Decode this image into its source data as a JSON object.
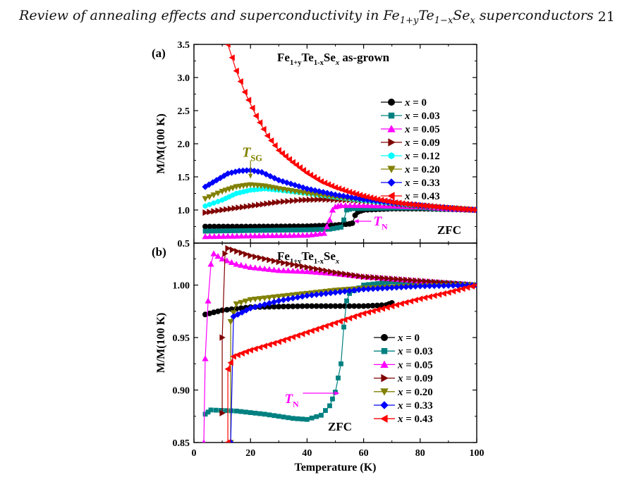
{
  "header": {
    "title_parts": [
      "Review of annealing effects and superconductivity in Fe",
      "1+y",
      "Te",
      "1−x",
      "Se",
      "x",
      " superconductors"
    ],
    "page_number": "21"
  },
  "chart_data": [
    {
      "panel_label": "(a)",
      "type": "scatter",
      "title_parts": [
        "Fe",
        "1+y",
        "Te",
        "1-x",
        "Se",
        "x",
        " as-grown"
      ],
      "ylabel": "M/M(100 K)",
      "xlabel": "",
      "xlim": [
        0,
        100
      ],
      "ylim": [
        0.5,
        3.5
      ],
      "yticks": [
        "0.5",
        "1.0",
        "1.5",
        "2.0",
        "2.5",
        "3.0",
        "3.5"
      ],
      "xticks": [
        "0",
        "20",
        "40",
        "60",
        "80",
        "100"
      ],
      "annotations": [
        {
          "parts": [
            "T",
            "SG"
          ],
          "color": "#808000",
          "points_to": [
            20,
            1.45
          ]
        },
        {
          "parts": [
            "T",
            "N"
          ],
          "color": "#ff00ff",
          "points_to": [
            56,
            0.83
          ]
        },
        {
          "parts": [
            "ZFC"
          ],
          "color": "#000000"
        }
      ],
      "legend": "right",
      "series": [
        {
          "label": "x = 0",
          "color": "#000000",
          "marker": "circle",
          "points": [
            [
              4,
              0.75
            ],
            [
              20,
              0.75
            ],
            [
              40,
              0.755
            ],
            [
              50,
              0.77
            ],
            [
              55,
              0.79
            ],
            [
              56,
              0.8
            ],
            [
              57,
              0.92
            ],
            [
              58,
              0.97
            ],
            [
              60,
              1.0
            ],
            [
              70,
              1.02
            ],
            [
              80,
              1.02
            ],
            [
              90,
              1.01
            ],
            [
              100,
              1.0
            ]
          ]
        },
        {
          "label": "x = 0.03",
          "color": "#008080",
          "marker": "square",
          "points": [
            [
              4,
              0.68
            ],
            [
              20,
              0.69
            ],
            [
              40,
              0.7
            ],
            [
              48,
              0.71
            ],
            [
              52,
              0.74
            ],
            [
              53,
              0.85
            ],
            [
              54,
              1.0
            ],
            [
              56,
              1.02
            ],
            [
              70,
              1.03
            ],
            [
              80,
              1.03
            ],
            [
              90,
              1.01
            ],
            [
              100,
              1.0
            ]
          ]
        },
        {
          "label": "x = 0.05",
          "color": "#ff00ff",
          "marker": "triangle-up",
          "points": [
            [
              4,
              0.6
            ],
            [
              20,
              0.61
            ],
            [
              40,
              0.62
            ],
            [
              46,
              0.65
            ],
            [
              48,
              0.85
            ],
            [
              49,
              1.0
            ],
            [
              50,
              1.05
            ],
            [
              52,
              1.07
            ],
            [
              60,
              1.07
            ],
            [
              70,
              1.06
            ],
            [
              80,
              1.05
            ],
            [
              90,
              1.02
            ],
            [
              100,
              1.0
            ]
          ]
        },
        {
          "label": "x = 0.09",
          "color": "#800000",
          "marker": "triangle-right",
          "points": [
            [
              4,
              0.96
            ],
            [
              10,
              1.0
            ],
            [
              20,
              1.06
            ],
            [
              30,
              1.12
            ],
            [
              38,
              1.15
            ],
            [
              45,
              1.16
            ],
            [
              55,
              1.15
            ],
            [
              65,
              1.12
            ],
            [
              80,
              1.06
            ],
            [
              100,
              1.0
            ]
          ]
        },
        {
          "label": "x = 0.12",
          "color": "#00ffff",
          "marker": "hexagon",
          "points": [
            [
              4,
              1.06
            ],
            [
              10,
              1.15
            ],
            [
              15,
              1.25
            ],
            [
              20,
              1.3
            ],
            [
              25,
              1.32
            ],
            [
              30,
              1.3
            ],
            [
              40,
              1.25
            ],
            [
              50,
              1.19
            ],
            [
              60,
              1.14
            ],
            [
              70,
              1.1
            ],
            [
              80,
              1.06
            ],
            [
              90,
              1.03
            ],
            [
              100,
              1.0
            ]
          ]
        },
        {
          "label": "x = 0.20",
          "color": "#808000",
          "marker": "triangle-down",
          "points": [
            [
              4,
              1.17
            ],
            [
              10,
              1.28
            ],
            [
              15,
              1.35
            ],
            [
              20,
              1.38
            ],
            [
              25,
              1.36
            ],
            [
              30,
              1.32
            ],
            [
              40,
              1.25
            ],
            [
              50,
              1.19
            ],
            [
              60,
              1.14
            ],
            [
              70,
              1.1
            ],
            [
              80,
              1.06
            ],
            [
              90,
              1.03
            ],
            [
              100,
              1.0
            ]
          ]
        },
        {
          "label": "x = 0.33",
          "color": "#0000ff",
          "marker": "diamond",
          "points": [
            [
              4,
              1.35
            ],
            [
              8,
              1.45
            ],
            [
              12,
              1.55
            ],
            [
              16,
              1.59
            ],
            [
              20,
              1.6
            ],
            [
              24,
              1.57
            ],
            [
              30,
              1.45
            ],
            [
              40,
              1.32
            ],
            [
              50,
              1.23
            ],
            [
              60,
              1.16
            ],
            [
              70,
              1.11
            ],
            [
              80,
              1.07
            ],
            [
              90,
              1.03
            ],
            [
              100,
              1.0
            ]
          ]
        },
        {
          "label": "x = 0.43",
          "color": "#ff0000",
          "marker": "triangle-left",
          "points": [
            [
              12,
              3.5
            ],
            [
              15,
              3.1
            ],
            [
              18,
              2.78
            ],
            [
              22,
              2.42
            ],
            [
              26,
              2.12
            ],
            [
              30,
              1.9
            ],
            [
              35,
              1.72
            ],
            [
              40,
              1.56
            ],
            [
              45,
              1.43
            ],
            [
              50,
              1.34
            ],
            [
              55,
              1.27
            ],
            [
              60,
              1.21
            ],
            [
              65,
              1.16
            ],
            [
              70,
              1.12
            ],
            [
              75,
              1.09
            ],
            [
              80,
              1.07
            ],
            [
              85,
              1.05
            ],
            [
              90,
              1.03
            ],
            [
              95,
              1.015
            ],
            [
              100,
              1.0
            ]
          ]
        }
      ]
    },
    {
      "panel_label": "(b)",
      "type": "scatter",
      "title_parts": [
        "Fe",
        "1+y",
        "Te",
        "1-x",
        "Se",
        "x"
      ],
      "ylabel": "M/M(100 K)",
      "xlabel": "Temperature (K)",
      "xlim": [
        0,
        100
      ],
      "ylim": [
        0.85,
        1.04
      ],
      "yticks": [
        "0.85",
        "0.90",
        "0.95",
        "1.00"
      ],
      "xticks": [
        "0",
        "20",
        "40",
        "60",
        "80",
        "100"
      ],
      "annotations": [
        {
          "parts": [
            "T",
            "N"
          ],
          "color": "#ff00ff",
          "points_to": [
            52,
            0.897
          ]
        },
        {
          "parts": [
            "ZFC"
          ],
          "color": "#000000"
        }
      ],
      "legend": "lower-right",
      "series": [
        {
          "label": "x = 0",
          "color": "#000000",
          "marker": "circle",
          "points": [
            [
              4,
              0.972
            ],
            [
              10,
              0.976
            ],
            [
              20,
              0.979
            ],
            [
              40,
              0.98
            ],
            [
              60,
              0.98
            ],
            [
              68,
              0.981
            ],
            [
              70,
              0.983
            ]
          ]
        },
        {
          "label": "x = 0.03",
          "color": "#008080",
          "marker": "square",
          "points": [
            [
              4,
              0.877
            ],
            [
              6,
              0.881
            ],
            [
              15,
              0.88
            ],
            [
              25,
              0.877
            ],
            [
              35,
              0.873
            ],
            [
              40,
              0.872
            ],
            [
              45,
              0.876
            ],
            [
              48,
              0.885
            ],
            [
              50,
              0.898
            ],
            [
              52,
              0.925
            ],
            [
              53,
              0.96
            ],
            [
              54,
              0.985
            ],
            [
              55,
              0.992
            ],
            [
              60,
              1.0
            ],
            [
              70,
              1.003
            ],
            [
              80,
              1.003
            ],
            [
              90,
              1.002
            ],
            [
              100,
              1.0
            ]
          ]
        },
        {
          "label": "x = 0.05",
          "color": "#ff00ff",
          "marker": "triangle-up",
          "points": [
            [
              3.5,
              0.85
            ],
            [
              4,
              0.93
            ],
            [
              5,
              0.985
            ],
            [
              6,
              1.02
            ],
            [
              7,
              1.03
            ],
            [
              10,
              1.025
            ],
            [
              15,
              1.02
            ],
            [
              20,
              1.017
            ],
            [
              30,
              1.014
            ],
            [
              40,
              1.013
            ],
            [
              50,
              1.011
            ],
            [
              60,
              1.008
            ],
            [
              80,
              1.004
            ],
            [
              100,
              1.0
            ]
          ]
        },
        {
          "label": "x = 0.09",
          "color": "#800000",
          "marker": "triangle-right",
          "points": [
            [
              10,
              0.878
            ],
            [
              10,
              0.95
            ],
            [
              11,
              1.03
            ],
            [
              12,
              1.035
            ],
            [
              20,
              1.028
            ],
            [
              30,
              1.022
            ],
            [
              40,
              1.017
            ],
            [
              50,
              1.012
            ],
            [
              60,
              1.008
            ],
            [
              80,
              1.004
            ],
            [
              100,
              1.0
            ]
          ]
        },
        {
          "label": "x = 0.20",
          "color": "#808000",
          "marker": "triangle-down",
          "points": [
            [
              13,
              0.85
            ],
            [
              13,
              0.965
            ],
            [
              15,
              0.982
            ],
            [
              20,
              0.986
            ],
            [
              30,
              0.989
            ],
            [
              40,
              0.992
            ],
            [
              50,
              0.995
            ],
            [
              60,
              0.997
            ],
            [
              80,
              0.999
            ],
            [
              100,
              1.0
            ]
          ]
        },
        {
          "label": "x = 0.33",
          "color": "#0000ff",
          "marker": "diamond",
          "points": [
            [
              13,
              0.85
            ],
            [
              14,
              0.97
            ],
            [
              20,
              0.978
            ],
            [
              30,
              0.985
            ],
            [
              40,
              0.99
            ],
            [
              50,
              0.993
            ],
            [
              60,
              0.996
            ],
            [
              80,
              0.999
            ],
            [
              100,
              1.0
            ]
          ]
        },
        {
          "label": "x = 0.43",
          "color": "#ff0000",
          "marker": "triangle-left",
          "points": [
            [
              12,
              0.85
            ],
            [
              12,
              0.92
            ],
            [
              14,
              0.932
            ],
            [
              20,
              0.938
            ],
            [
              30,
              0.946
            ],
            [
              40,
              0.955
            ],
            [
              50,
              0.964
            ],
            [
              60,
              0.973
            ],
            [
              70,
              0.98
            ],
            [
              80,
              0.987
            ],
            [
              90,
              0.993
            ],
            [
              100,
              1.0
            ]
          ]
        }
      ]
    }
  ]
}
